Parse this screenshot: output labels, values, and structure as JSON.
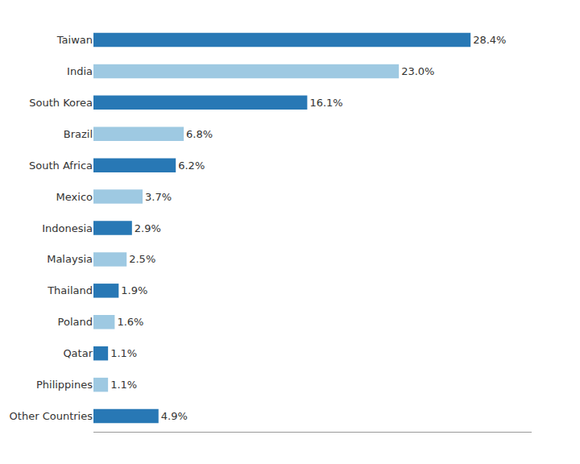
{
  "chart_data": {
    "type": "bar",
    "orientation": "horizontal",
    "categories": [
      "Taiwan",
      "India",
      "South Korea",
      "Brazil",
      "South Africa",
      "Mexico",
      "Indonesia",
      "Malaysia",
      "Thailand",
      "Poland",
      "Qatar",
      "Philippines",
      "Other Countries"
    ],
    "values": [
      28.4,
      23.0,
      16.1,
      6.8,
      6.2,
      3.7,
      2.9,
      2.5,
      1.9,
      1.6,
      1.1,
      1.1,
      4.9
    ],
    "value_labels": [
      "28.4%",
      "23.0%",
      "16.1%",
      "6.8%",
      "6.2%",
      "3.7%",
      "2.9%",
      "2.5%",
      "1.9%",
      "1.6%",
      "1.1%",
      "1.1%",
      "4.9%"
    ],
    "colors": [
      "#2878b5",
      "#9ec9e2",
      "#2878b5",
      "#9ec9e2",
      "#2878b5",
      "#9ec9e2",
      "#2878b5",
      "#9ec9e2",
      "#2878b5",
      "#9ec9e2",
      "#2878b5",
      "#9ec9e2",
      "#2878b5"
    ],
    "xlim": [
      0,
      33
    ],
    "data_labels": true,
    "tick_labels": "y",
    "grid": false
  }
}
